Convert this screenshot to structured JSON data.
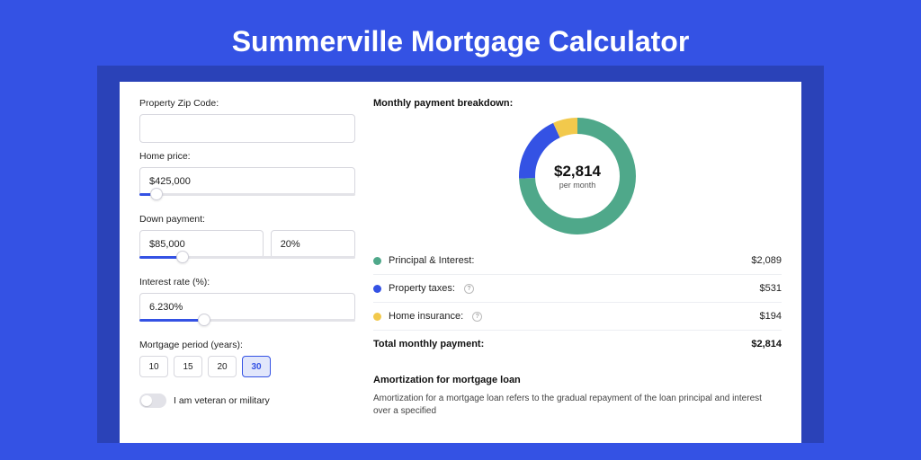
{
  "title": "Summerville Mortgage Calculator",
  "colors": {
    "page_bg": "#3452e4",
    "band_bg": "#2a42b8",
    "panel_bg": "#ffffff",
    "accent": "#3452e4",
    "border": "#d7d7de",
    "text": "#222222"
  },
  "form": {
    "zip": {
      "label": "Property Zip Code:",
      "value": ""
    },
    "home_price": {
      "label": "Home price:",
      "value": "$425,000",
      "slider_pct": 8
    },
    "down_payment": {
      "label": "Down payment:",
      "value": "$85,000",
      "pct": "20%",
      "slider_pct": 20
    },
    "interest": {
      "label": "Interest rate (%):",
      "value": "6.230%",
      "slider_pct": 30
    },
    "period": {
      "label": "Mortgage period (years):",
      "options": [
        "10",
        "15",
        "20",
        "30"
      ],
      "selected": "30"
    },
    "veteran": {
      "label": "I am veteran or military",
      "checked": false
    }
  },
  "breakdown": {
    "heading": "Monthly payment breakdown:",
    "donut": {
      "center_value": "$2,814",
      "center_sub": "per month",
      "ring_width": 18,
      "radius": 56,
      "segments": [
        {
          "key": "principal_interest",
          "color": "#4fa88a",
          "value": 2089
        },
        {
          "key": "property_taxes",
          "color": "#3452e4",
          "value": 531
        },
        {
          "key": "home_insurance",
          "color": "#f2c94c",
          "value": 194
        }
      ],
      "total": 2814
    },
    "rows": [
      {
        "dot": "#4fa88a",
        "label": "Principal & Interest:",
        "info": false,
        "value": "$2,089"
      },
      {
        "dot": "#3452e4",
        "label": "Property taxes:",
        "info": true,
        "value": "$531"
      },
      {
        "dot": "#f2c94c",
        "label": "Home insurance:",
        "info": true,
        "value": "$194"
      }
    ],
    "total_label": "Total monthly payment:",
    "total_value": "$2,814"
  },
  "amortization": {
    "heading": "Amortization for mortgage loan",
    "body": "Amortization for a mortgage loan refers to the gradual repayment of the loan principal and interest over a specified"
  }
}
